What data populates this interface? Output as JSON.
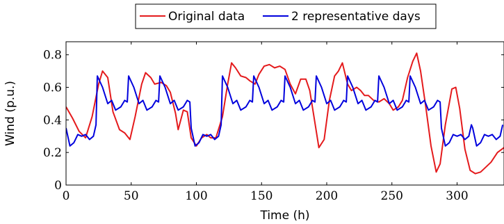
{
  "chart_data": {
    "type": "line",
    "xlabel": "Time (h)",
    "ylabel": "Wind (p.u.)",
    "xlim": [
      0,
      336
    ],
    "ylim": [
      0,
      0.88
    ],
    "xticks": [
      0,
      50,
      100,
      150,
      200,
      250,
      300
    ],
    "yticks": [
      0,
      0.2,
      0.4,
      0.6,
      0.8
    ],
    "legend_position": "top-center",
    "grid": false,
    "series": [
      {
        "name": "Original data",
        "color": "#e41a1c",
        "points": [
          [
            0,
            0.48
          ],
          [
            5,
            0.41
          ],
          [
            10,
            0.33
          ],
          [
            15,
            0.29
          ],
          [
            20,
            0.42
          ],
          [
            25,
            0.62
          ],
          [
            28,
            0.7
          ],
          [
            32,
            0.66
          ],
          [
            36,
            0.45
          ],
          [
            41,
            0.34
          ],
          [
            45,
            0.32
          ],
          [
            49,
            0.28
          ],
          [
            53,
            0.42
          ],
          [
            58,
            0.62
          ],
          [
            61,
            0.69
          ],
          [
            65,
            0.66
          ],
          [
            68,
            0.62
          ],
          [
            73,
            0.63
          ],
          [
            77,
            0.61
          ],
          [
            80,
            0.57
          ],
          [
            84,
            0.44
          ],
          [
            86,
            0.34
          ],
          [
            90,
            0.46
          ],
          [
            93,
            0.45
          ],
          [
            96,
            0.29
          ],
          [
            100,
            0.24
          ],
          [
            104,
            0.29
          ],
          [
            108,
            0.31
          ],
          [
            111,
            0.29
          ],
          [
            115,
            0.29
          ],
          [
            120,
            0.42
          ],
          [
            124,
            0.62
          ],
          [
            127,
            0.75
          ],
          [
            130,
            0.72
          ],
          [
            134,
            0.67
          ],
          [
            138,
            0.66
          ],
          [
            141,
            0.64
          ],
          [
            145,
            0.62
          ],
          [
            148,
            0.68
          ],
          [
            152,
            0.73
          ],
          [
            156,
            0.74
          ],
          [
            160,
            0.72
          ],
          [
            164,
            0.73
          ],
          [
            168,
            0.71
          ],
          [
            172,
            0.62
          ],
          [
            176,
            0.56
          ],
          [
            180,
            0.65
          ],
          [
            184,
            0.65
          ],
          [
            187,
            0.58
          ],
          [
            191,
            0.38
          ],
          [
            194,
            0.23
          ],
          [
            198,
            0.28
          ],
          [
            202,
            0.52
          ],
          [
            206,
            0.67
          ],
          [
            209,
            0.7
          ],
          [
            212,
            0.75
          ],
          [
            216,
            0.62
          ],
          [
            219,
            0.58
          ],
          [
            223,
            0.6
          ],
          [
            226,
            0.58
          ],
          [
            229,
            0.55
          ],
          [
            232,
            0.55
          ],
          [
            236,
            0.52
          ],
          [
            240,
            0.51
          ],
          [
            244,
            0.53
          ],
          [
            248,
            0.5
          ],
          [
            251,
            0.46
          ],
          [
            255,
            0.48
          ],
          [
            258,
            0.52
          ],
          [
            262,
            0.66
          ],
          [
            266,
            0.76
          ],
          [
            269,
            0.81
          ],
          [
            272,
            0.7
          ],
          [
            276,
            0.48
          ],
          [
            280,
            0.24
          ],
          [
            284,
            0.08
          ],
          [
            287,
            0.13
          ],
          [
            291,
            0.37
          ],
          [
            296,
            0.59
          ],
          [
            299,
            0.6
          ],
          [
            302,
            0.47
          ],
          [
            306,
            0.22
          ],
          [
            310,
            0.09
          ],
          [
            314,
            0.07
          ],
          [
            318,
            0.08
          ],
          [
            322,
            0.11
          ],
          [
            326,
            0.14
          ],
          [
            331,
            0.2
          ],
          [
            336,
            0.23
          ]
        ]
      },
      {
        "name": "2 representative days",
        "color": "#0000dd",
        "points": [
          [
            0,
            0.35
          ],
          [
            3,
            0.24
          ],
          [
            6,
            0.26
          ],
          [
            9,
            0.31
          ],
          [
            12,
            0.3
          ],
          [
            15,
            0.31
          ],
          [
            18,
            0.28
          ],
          [
            21,
            0.3
          ],
          [
            23,
            0.37
          ],
          [
            24,
            0.67
          ],
          [
            28,
            0.6
          ],
          [
            32,
            0.5
          ],
          [
            35,
            0.52
          ],
          [
            38,
            0.46
          ],
          [
            42,
            0.48
          ],
          [
            45,
            0.52
          ],
          [
            47,
            0.51
          ],
          [
            48,
            0.67
          ],
          [
            52,
            0.6
          ],
          [
            56,
            0.5
          ],
          [
            59,
            0.52
          ],
          [
            62,
            0.46
          ],
          [
            66,
            0.48
          ],
          [
            69,
            0.52
          ],
          [
            71,
            0.51
          ],
          [
            72,
            0.67
          ],
          [
            76,
            0.6
          ],
          [
            80,
            0.5
          ],
          [
            83,
            0.52
          ],
          [
            86,
            0.46
          ],
          [
            90,
            0.48
          ],
          [
            93,
            0.52
          ],
          [
            95,
            0.51
          ],
          [
            96,
            0.35
          ],
          [
            99,
            0.24
          ],
          [
            102,
            0.26
          ],
          [
            105,
            0.31
          ],
          [
            108,
            0.3
          ],
          [
            111,
            0.31
          ],
          [
            114,
            0.28
          ],
          [
            117,
            0.3
          ],
          [
            119,
            0.37
          ],
          [
            120,
            0.67
          ],
          [
            124,
            0.6
          ],
          [
            128,
            0.5
          ],
          [
            131,
            0.52
          ],
          [
            134,
            0.46
          ],
          [
            138,
            0.48
          ],
          [
            141,
            0.52
          ],
          [
            143,
            0.51
          ],
          [
            144,
            0.67
          ],
          [
            148,
            0.6
          ],
          [
            152,
            0.5
          ],
          [
            155,
            0.52
          ],
          [
            158,
            0.46
          ],
          [
            162,
            0.48
          ],
          [
            165,
            0.52
          ],
          [
            167,
            0.51
          ],
          [
            168,
            0.67
          ],
          [
            172,
            0.6
          ],
          [
            176,
            0.5
          ],
          [
            179,
            0.52
          ],
          [
            182,
            0.46
          ],
          [
            186,
            0.48
          ],
          [
            189,
            0.52
          ],
          [
            191,
            0.51
          ],
          [
            192,
            0.67
          ],
          [
            196,
            0.6
          ],
          [
            200,
            0.5
          ],
          [
            203,
            0.52
          ],
          [
            206,
            0.46
          ],
          [
            210,
            0.48
          ],
          [
            213,
            0.52
          ],
          [
            215,
            0.51
          ],
          [
            216,
            0.67
          ],
          [
            220,
            0.6
          ],
          [
            224,
            0.5
          ],
          [
            227,
            0.52
          ],
          [
            230,
            0.46
          ],
          [
            234,
            0.48
          ],
          [
            237,
            0.52
          ],
          [
            239,
            0.51
          ],
          [
            240,
            0.67
          ],
          [
            244,
            0.6
          ],
          [
            248,
            0.5
          ],
          [
            251,
            0.52
          ],
          [
            254,
            0.46
          ],
          [
            258,
            0.48
          ],
          [
            261,
            0.52
          ],
          [
            263,
            0.51
          ],
          [
            264,
            0.67
          ],
          [
            268,
            0.6
          ],
          [
            272,
            0.5
          ],
          [
            275,
            0.52
          ],
          [
            278,
            0.46
          ],
          [
            282,
            0.48
          ],
          [
            285,
            0.52
          ],
          [
            287,
            0.51
          ],
          [
            288,
            0.35
          ],
          [
            291,
            0.24
          ],
          [
            294,
            0.26
          ],
          [
            297,
            0.31
          ],
          [
            300,
            0.3
          ],
          [
            303,
            0.31
          ],
          [
            306,
            0.28
          ],
          [
            309,
            0.3
          ],
          [
            311,
            0.37
          ],
          [
            312,
            0.35
          ],
          [
            315,
            0.24
          ],
          [
            318,
            0.26
          ],
          [
            321,
            0.31
          ],
          [
            324,
            0.3
          ],
          [
            327,
            0.31
          ],
          [
            330,
            0.28
          ],
          [
            333,
            0.3
          ],
          [
            335,
            0.37
          ]
        ]
      }
    ]
  }
}
